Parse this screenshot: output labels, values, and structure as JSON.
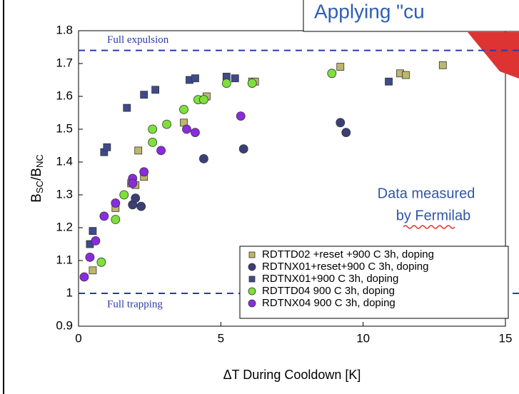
{
  "chart_data": {
    "type": "scatter",
    "title": "Applying \"cu",
    "annotations": [
      "Data measured",
      "by Fermilab"
    ],
    "x_label": "ΔT During Cooldown [K]",
    "y_label": [
      "B",
      "SC",
      "/B",
      "NC"
    ],
    "xlim": [
      0,
      15
    ],
    "xticks": [
      0,
      5,
      10,
      15
    ],
    "ylim": [
      0.9,
      1.8
    ],
    "yticks": [
      0.9,
      1,
      1.1,
      1.2,
      1.3,
      1.4,
      1.5,
      1.6,
      1.7,
      1.8
    ],
    "ref_lines": [
      {
        "y": 1.74,
        "label": "Full expulsion"
      },
      {
        "y": 1,
        "label": "Full trapping"
      }
    ],
    "legend": "lower right",
    "series": [
      {
        "name": "RDTTD02 +reset +900 C 3h, doping",
        "color": "#bdb76b",
        "marker": "square",
        "x": [
          0.5,
          1.3,
          1.85,
          2.0,
          2.1,
          2.3,
          3.7,
          4.3,
          4.5,
          6.1,
          6.2,
          9.2,
          11.3,
          11.5,
          12.8
        ],
        "values": [
          1.07,
          1.26,
          1.335,
          1.33,
          1.435,
          1.355,
          1.52,
          1.59,
          1.6,
          1.645,
          1.645,
          1.69,
          1.67,
          1.665,
          1.695
        ]
      },
      {
        "name": "RDTNX01+reset+900 C 3h, doping",
        "color": "#3b3f78",
        "marker": "circle",
        "x": [
          1.9,
          2.0,
          2.2,
          4.4,
          5.8,
          9.2,
          9.4
        ],
        "values": [
          1.27,
          1.29,
          1.265,
          1.41,
          1.44,
          1.52,
          1.49
        ]
      },
      {
        "name": "RDTNX01+900 C 3h, doping",
        "color": "#3f4a8c",
        "marker": "square",
        "x": [
          0.4,
          0.5,
          0.9,
          1.0,
          1.7,
          2.3,
          2.7,
          3.9,
          4.1,
          5.2,
          5.5,
          10.9
        ],
        "values": [
          1.15,
          1.19,
          1.43,
          1.445,
          1.565,
          1.605,
          1.62,
          1.65,
          1.655,
          1.66,
          1.655,
          1.645
        ]
      },
      {
        "name": "RDTTD04 900 C 3h, doping",
        "color": "#7ee03a",
        "marker": "circle",
        "x": [
          0.8,
          1.3,
          1.6,
          2.6,
          2.6,
          3.1,
          3.7,
          4.2,
          4.4,
          5.2,
          6.1,
          8.9
        ],
        "values": [
          1.095,
          1.225,
          1.3,
          1.46,
          1.5,
          1.515,
          1.56,
          1.59,
          1.59,
          1.64,
          1.64,
          1.67
        ]
      },
      {
        "name": "RDTNX04 900 C 3h, doping",
        "color": "#8a2be2",
        "marker": "circle",
        "x": [
          0.2,
          0.4,
          0.6,
          0.9,
          1.3,
          1.9,
          1.9,
          2.3,
          2.9,
          3.8,
          4.1,
          5.7
        ],
        "values": [
          1.05,
          1.11,
          1.16,
          1.235,
          1.275,
          1.35,
          1.335,
          1.37,
          1.435,
          1.5,
          1.49,
          1.54
        ]
      }
    ]
  }
}
